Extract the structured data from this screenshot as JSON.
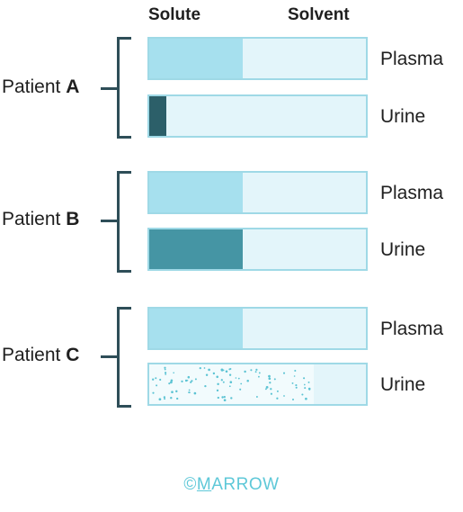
{
  "headers": {
    "solute": "Solute",
    "solvent": "Solvent"
  },
  "patients": [
    {
      "prefix": "Patient ",
      "letter": "A",
      "rows": [
        {
          "label": "Plasma",
          "solute_fraction": 0.43,
          "fill": "light"
        },
        {
          "label": "Urine",
          "solute_fraction": 0.08,
          "fill": "dark"
        }
      ]
    },
    {
      "prefix": "Patient ",
      "letter": "B",
      "rows": [
        {
          "label": "Plasma",
          "solute_fraction": 0.43,
          "fill": "light"
        },
        {
          "label": "Urine",
          "solute_fraction": 0.43,
          "fill": "mid"
        }
      ]
    },
    {
      "prefix": "Patient ",
      "letter": "C",
      "rows": [
        {
          "label": "Plasma",
          "solute_fraction": 0.43,
          "fill": "light"
        },
        {
          "label": "Urine",
          "solute_fraction": 0.76,
          "fill": "dots"
        }
      ]
    }
  ],
  "colors": {
    "bracket": "#2e4e58",
    "bar_border": "#9fd9e6",
    "solvent": "#e3f5fa",
    "light": "#a6e0ee",
    "dark": "#2c5f69",
    "mid": "#4595a4",
    "dot": "#5cc3d3"
  },
  "footer": {
    "copyright": "©",
    "brand_first": "M",
    "brand_rest": "ARROW"
  }
}
